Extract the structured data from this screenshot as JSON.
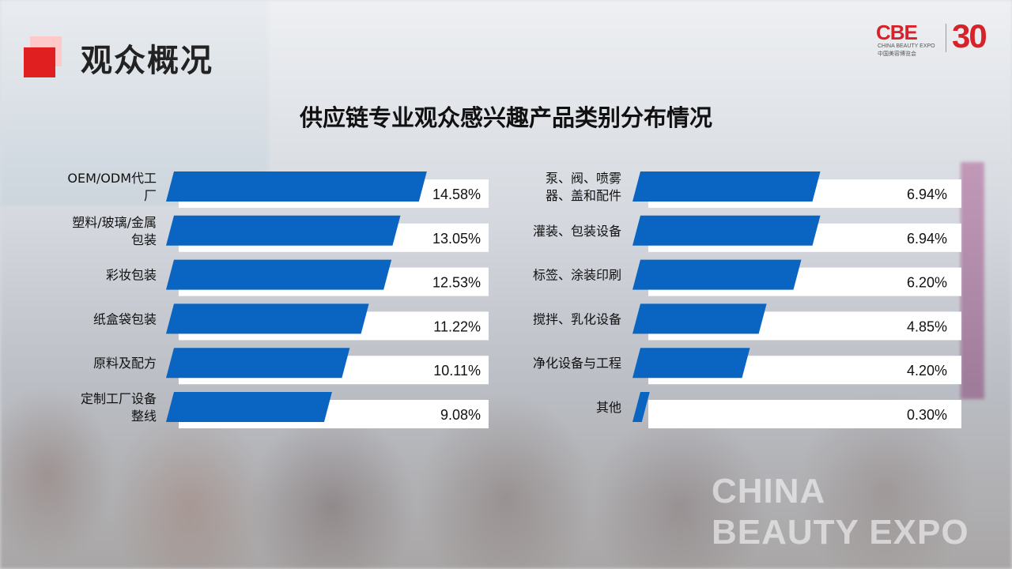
{
  "page": {
    "heading": "观众概况",
    "logo": {
      "brand": "CBE",
      "brand_sub": "CHINA BEAUTY EXPO",
      "brand_cn": "中国美容博览会",
      "anniversary": "30"
    },
    "watermark": [
      "CHINA",
      "BEAUTY EXPO"
    ]
  },
  "colors": {
    "bar": "#0a64c2",
    "panel": "#ffffff",
    "accent": "#e02020"
  },
  "chart_data": {
    "type": "bar",
    "orientation": "horizontal",
    "title": "供应链专业观众感兴趣产品类别分布情况",
    "unit": "%",
    "columns": [
      {
        "categories": [
          [
            "OEM/ODM代工",
            "厂"
          ],
          [
            "塑料/玻璃/金属",
            "包装"
          ],
          [
            "彩妆包装"
          ],
          [
            "纸盒袋包装"
          ],
          [
            "原料及配方"
          ],
          [
            "定制工厂设备",
            "整线"
          ]
        ],
        "values": [
          14.58,
          13.05,
          12.53,
          11.22,
          10.11,
          9.08
        ],
        "value_labels": [
          "14.58%",
          "13.05%",
          "12.53%",
          "11.22%",
          "10.11%",
          "9.08%"
        ]
      },
      {
        "categories": [
          [
            "泵、阀、喷雾",
            "器、盖和配件"
          ],
          [
            "灌装、包装设备"
          ],
          [
            "标签、涂装印刷"
          ],
          [
            "搅拌、乳化设备"
          ],
          [
            "净化设备与工程"
          ],
          [
            "其他"
          ]
        ],
        "values": [
          6.94,
          6.94,
          6.2,
          4.85,
          4.2,
          0.3
        ],
        "value_labels": [
          "6.94%",
          "6.94%",
          "6.20%",
          "4.85%",
          "4.20%",
          "0.30%"
        ]
      }
    ]
  }
}
